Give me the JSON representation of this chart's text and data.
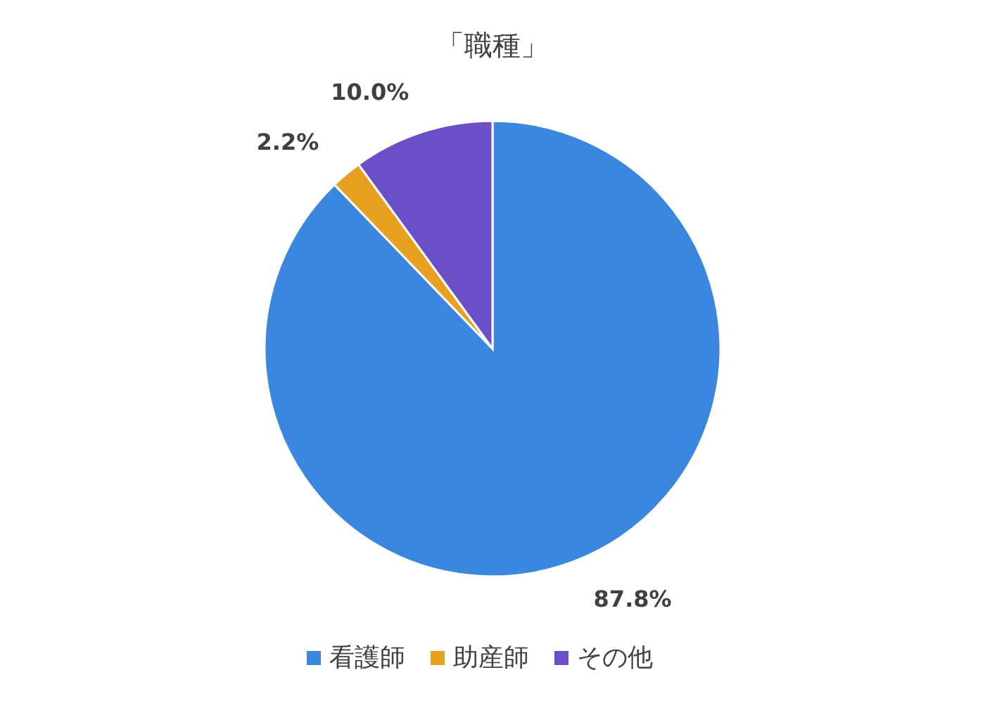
{
  "chart_data": {
    "type": "pie",
    "title": "「職種」",
    "categories": [
      "看護師",
      "助産師",
      "その他"
    ],
    "values": [
      87.8,
      2.2,
      10.0
    ],
    "colors": [
      "#3b87e0",
      "#e8a020",
      "#6a4fc8"
    ],
    "value_labels": [
      "87.8%",
      "2.2%",
      "10.0%"
    ],
    "legend": "bottom"
  }
}
